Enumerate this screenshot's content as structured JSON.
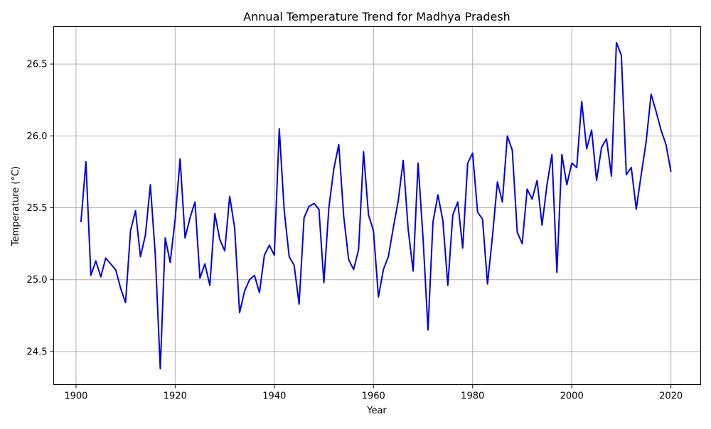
{
  "chart_data": {
    "type": "line",
    "title": "Annual Temperature Trend for Madhya Pradesh",
    "xlabel": "Year",
    "ylabel": "Temperature (°C)",
    "xlim": [
      1895.5,
      2026
    ],
    "ylim": [
      24.27,
      26.76
    ],
    "xticks": [
      1900,
      1920,
      1940,
      1960,
      1980,
      2000,
      2020
    ],
    "yticks": [
      24.5,
      25.0,
      25.5,
      26.0,
      26.5
    ],
    "xtick_labels": [
      "1900",
      "1920",
      "1940",
      "1960",
      "1980",
      "2000",
      "2020"
    ],
    "ytick_labels": [
      "24.5",
      "25.0",
      "25.5",
      "26.0",
      "26.5"
    ],
    "grid": true,
    "line_color": "#0000dd",
    "series": [
      {
        "x": [
          1901,
          1902,
          1903,
          1904,
          1905,
          1906,
          1907,
          1908,
          1909,
          1910,
          1911,
          1912,
          1913,
          1914,
          1915,
          1916,
          1917,
          1918,
          1919,
          1920,
          1921,
          1922,
          1923,
          1924,
          1925,
          1926,
          1927,
          1928,
          1929,
          1930,
          1931,
          1932,
          1933,
          1934,
          1935,
          1936,
          1937,
          1938,
          1939,
          1940,
          1941,
          1942,
          1943,
          1944,
          1945,
          1946,
          1947,
          1948,
          1949,
          1950,
          1951,
          1952,
          1953,
          1954,
          1955,
          1956,
          1957,
          1958,
          1959,
          1960,
          1961,
          1962,
          1963,
          1964,
          1965,
          1966,
          1967,
          1968,
          1969,
          1970,
          1971,
          1972,
          1973,
          1974,
          1975,
          1976,
          1977,
          1978,
          1979,
          1980,
          1981,
          1982,
          1983,
          1984,
          1985,
          1986,
          1987,
          1988,
          1989,
          1990,
          1991,
          1992,
          1993,
          1994,
          1995,
          1996,
          1997,
          1998,
          1999,
          2000,
          2001,
          2002,
          2003,
          2004,
          2005,
          2006,
          2007,
          2008,
          2009,
          2010,
          2011,
          2012,
          2013,
          2014,
          2015,
          2016,
          2017,
          2018,
          2019,
          2020
        ],
        "values": [
          25.4,
          25.82,
          25.03,
          25.13,
          25.02,
          25.15,
          25.11,
          25.07,
          24.94,
          24.84,
          25.34,
          25.48,
          25.16,
          25.31,
          25.66,
          25.17,
          24.38,
          25.29,
          25.12,
          25.42,
          25.84,
          25.29,
          25.43,
          25.54,
          25.01,
          25.11,
          24.96,
          25.46,
          25.28,
          25.2,
          25.58,
          25.36,
          24.77,
          24.92,
          25.0,
          25.03,
          24.91,
          25.17,
          25.24,
          25.17,
          26.05,
          25.48,
          25.16,
          25.1,
          24.83,
          25.43,
          25.51,
          25.53,
          25.49,
          24.98,
          25.5,
          25.77,
          25.94,
          25.44,
          25.14,
          25.07,
          25.21,
          25.89,
          25.45,
          25.34,
          24.88,
          25.07,
          25.16,
          25.36,
          25.55,
          25.83,
          25.35,
          25.06,
          25.81,
          25.29,
          24.65,
          25.4,
          25.59,
          25.41,
          24.96,
          25.45,
          25.54,
          25.22,
          25.81,
          25.88,
          25.47,
          25.42,
          24.97,
          25.3,
          25.68,
          25.54,
          26.0,
          25.9,
          25.33,
          25.25,
          25.63,
          25.56,
          25.69,
          25.38,
          25.66,
          25.87,
          25.05,
          25.87,
          25.66,
          25.81,
          25.78,
          26.24,
          25.91,
          26.04,
          25.69,
          25.92,
          25.98,
          25.72,
          26.65,
          26.56,
          25.73,
          25.78,
          25.49,
          25.73,
          25.96,
          26.29,
          26.17,
          26.04,
          25.94,
          25.75
        ]
      }
    ]
  }
}
